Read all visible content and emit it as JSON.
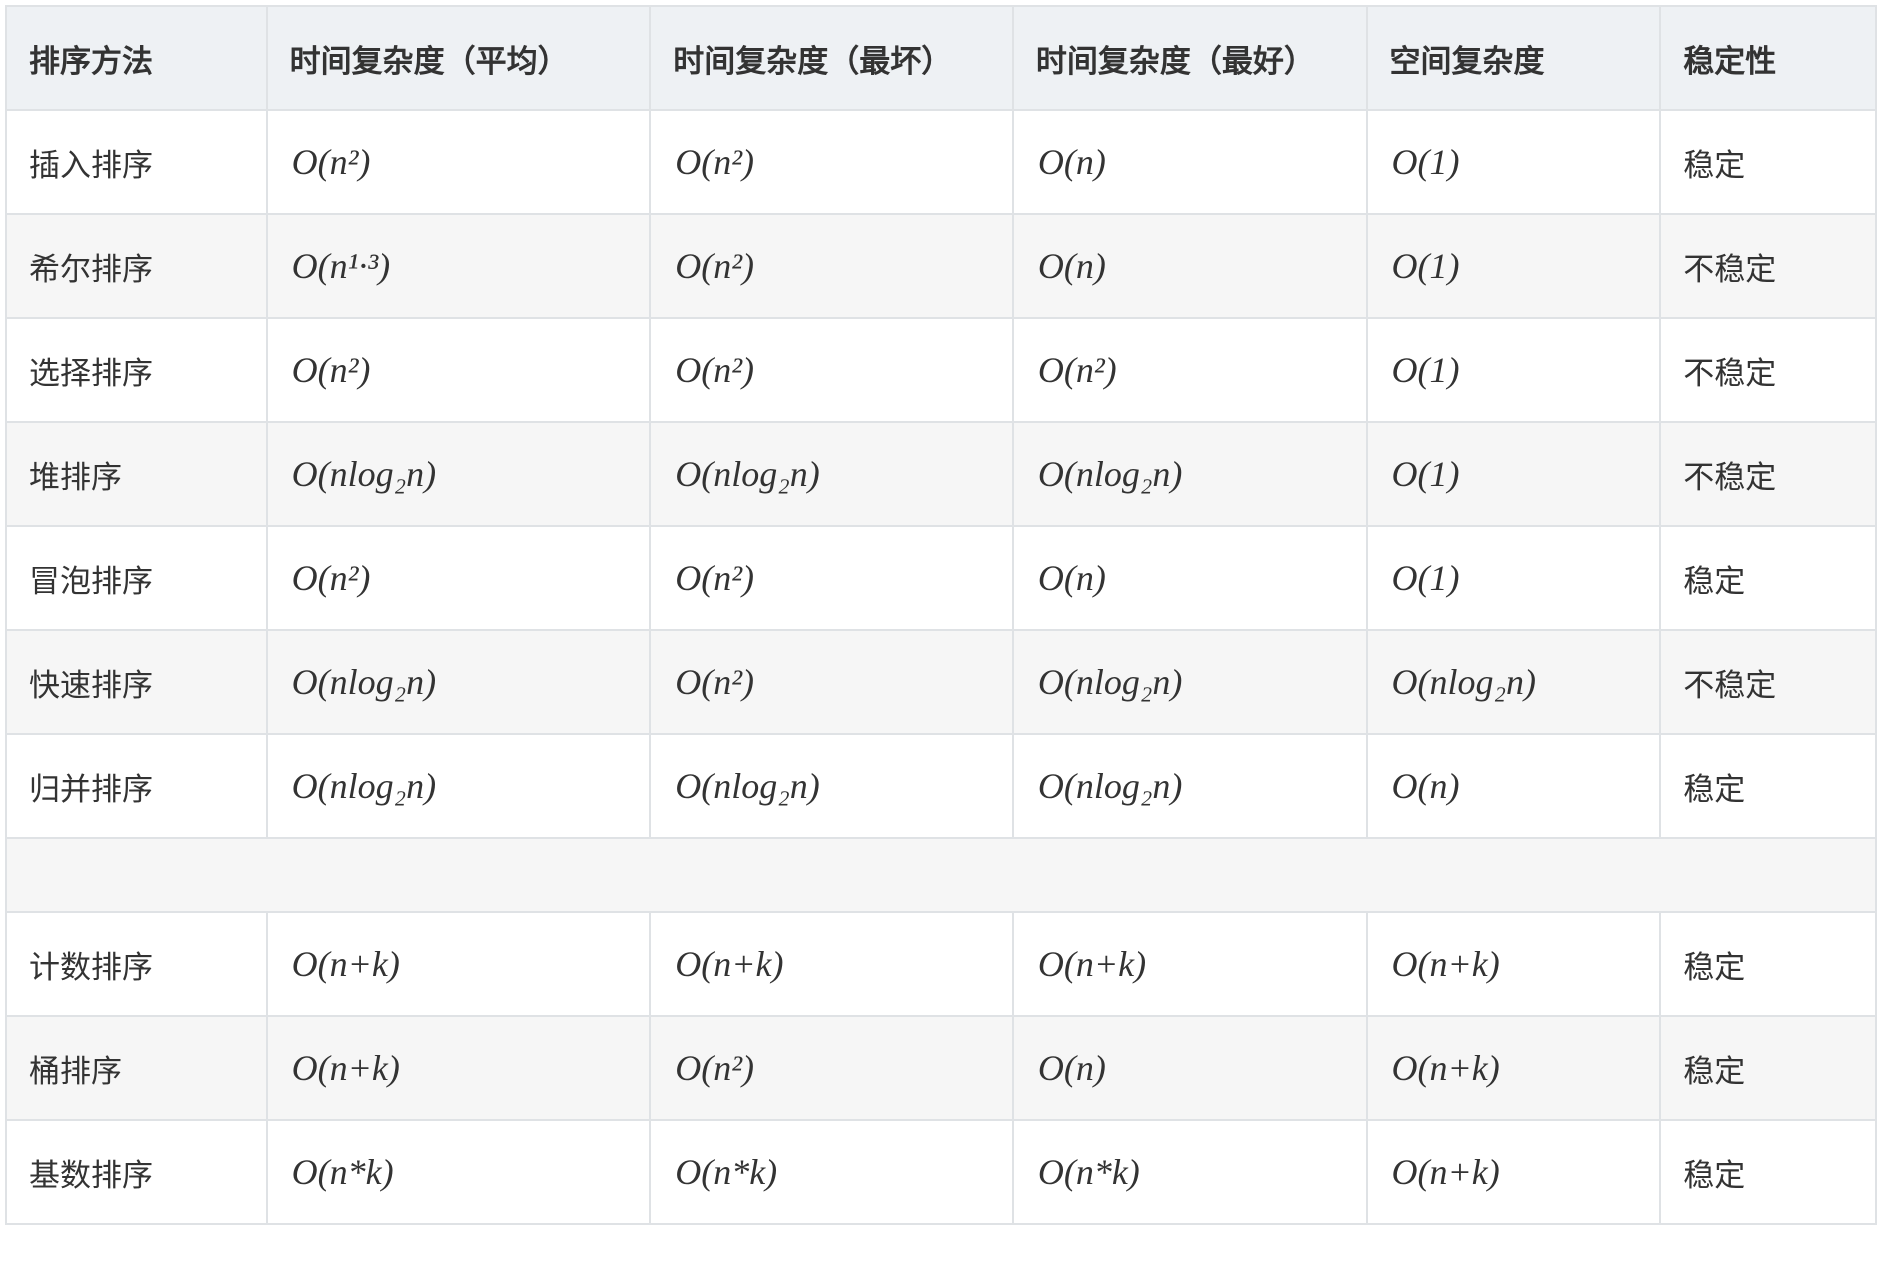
{
  "table": {
    "headers": [
      "排序方法",
      "时间复杂度（平均）",
      "时间复杂度（最坏）",
      "时间复杂度（最好）",
      "空间复杂度",
      "稳定性"
    ],
    "rows": [
      [
        "插入排序",
        "O(n²)",
        "O(n²)",
        "O(n)",
        "O(1)",
        "稳定"
      ],
      [
        "希尔排序",
        "O(n¹·³)",
        "O(n²)",
        "O(n)",
        "O(1)",
        "不稳定"
      ],
      [
        "选择排序",
        "O(n²)",
        "O(n²)",
        "O(n²)",
        "O(1)",
        "不稳定"
      ],
      [
        "堆排序",
        "O(nlog₂n)",
        "O(nlog₂n)",
        "O(nlog₂n)",
        "O(1)",
        "不稳定"
      ],
      [
        "冒泡排序",
        "O(n²)",
        "O(n²)",
        "O(n)",
        "O(1)",
        "稳定"
      ],
      [
        "快速排序",
        "O(nlog₂n)",
        "O(n²)",
        "O(nlog₂n)",
        "O(nlog₂n)",
        "不稳定"
      ],
      [
        "归并排序",
        "O(nlog₂n)",
        "O(nlog₂n)",
        "O(nlog₂n)",
        "O(n)",
        "稳定"
      ],
      null,
      [
        "计数排序",
        "O(n+k)",
        "O(n+k)",
        "O(n+k)",
        "O(n+k)",
        "稳定"
      ],
      [
        "桶排序",
        "O(n+k)",
        "O(n²)",
        "O(n)",
        "O(n+k)",
        "稳定"
      ],
      [
        "基数排序",
        "O(n*k)",
        "O(n*k)",
        "O(n*k)",
        "O(n+k)",
        "稳定"
      ]
    ]
  }
}
